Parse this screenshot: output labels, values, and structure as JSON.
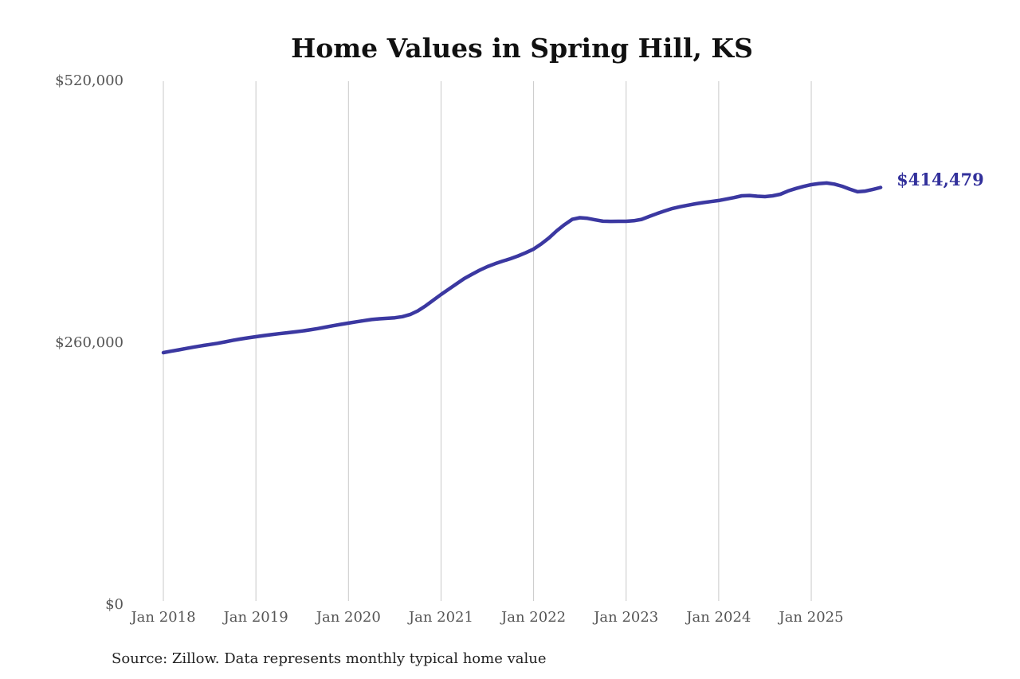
{
  "chart": {
    "title": "Home Values in Spring Hill, KS",
    "end_label": "$414,479",
    "source_note": "Source: Zillow. Data represents monthly typical home value",
    "line_color": "#3b38a1",
    "end_label_color": "#32309b",
    "grid_color": "#c9c9c9",
    "tick_color": "#555555"
  },
  "chart_data": {
    "type": "line",
    "title": "Home Values in Spring Hill, KS",
    "xlabel": "",
    "ylabel": "",
    "legend": "none",
    "grid": "vertical-yearly",
    "ylim": [
      0,
      520000
    ],
    "y_tick_values": [
      0,
      260000,
      520000
    ],
    "y_tick_labels": [
      "$0",
      "$260,000",
      "$520,000"
    ],
    "x_tick_labels": [
      "Jan 2018",
      "Jan 2019",
      "Jan 2020",
      "Jan 2021",
      "Jan 2022",
      "Jan 2023",
      "Jan 2024",
      "Jan 2025"
    ],
    "annotation": {
      "text": "$414,479",
      "value": 414479,
      "position": "end-of-line"
    },
    "source": "Source: Zillow. Data represents monthly typical home value",
    "x": [
      "2018-01",
      "2018-02",
      "2018-03",
      "2018-04",
      "2018-05",
      "2018-06",
      "2018-07",
      "2018-08",
      "2018-09",
      "2018-10",
      "2018-11",
      "2018-12",
      "2019-01",
      "2019-02",
      "2019-03",
      "2019-04",
      "2019-05",
      "2019-06",
      "2019-07",
      "2019-08",
      "2019-09",
      "2019-10",
      "2019-11",
      "2019-12",
      "2020-01",
      "2020-02",
      "2020-03",
      "2020-04",
      "2020-05",
      "2020-06",
      "2020-07",
      "2020-08",
      "2020-09",
      "2020-10",
      "2020-11",
      "2020-12",
      "2021-01",
      "2021-02",
      "2021-03",
      "2021-04",
      "2021-05",
      "2021-06",
      "2021-07",
      "2021-08",
      "2021-09",
      "2021-10",
      "2021-11",
      "2021-12",
      "2022-01",
      "2022-02",
      "2022-03",
      "2022-04",
      "2022-05",
      "2022-06",
      "2022-07",
      "2022-08",
      "2022-09",
      "2022-10",
      "2022-11",
      "2022-12",
      "2023-01",
      "2023-02",
      "2023-03",
      "2023-04",
      "2023-05",
      "2023-06",
      "2023-07",
      "2023-08",
      "2023-09",
      "2023-10",
      "2023-11",
      "2023-12",
      "2024-01",
      "2024-02",
      "2024-03",
      "2024-04",
      "2024-05",
      "2024-06",
      "2024-07",
      "2024-08",
      "2024-09",
      "2024-10",
      "2024-11",
      "2024-12",
      "2025-01",
      "2025-02",
      "2025-03",
      "2025-04",
      "2025-05",
      "2025-06",
      "2025-07",
      "2025-08",
      "2025-09",
      "2025-10"
    ],
    "values": [
      250500,
      251900,
      253300,
      254700,
      256100,
      257400,
      258600,
      259800,
      261200,
      262700,
      264000,
      265200,
      266300,
      267400,
      268400,
      269300,
      270200,
      271100,
      272000,
      273100,
      274400,
      275800,
      277200,
      278600,
      279800,
      281100,
      282300,
      283400,
      284100,
      284600,
      285100,
      286200,
      288400,
      292000,
      297000,
      302600,
      308200,
      313500,
      318800,
      324000,
      328300,
      332300,
      335900,
      338800,
      341400,
      343800,
      346500,
      349800,
      353300,
      358500,
      364500,
      371400,
      377500,
      382800,
      384500,
      383800,
      382300,
      381000,
      380800,
      380900,
      380900,
      381500,
      382800,
      385700,
      388600,
      391200,
      393600,
      395400,
      396900,
      398300,
      399500,
      400500,
      401500,
      403000,
      404500,
      406200,
      406500,
      405800,
      405400,
      406200,
      407800,
      411000,
      413500,
      415500,
      417300,
      418400,
      418900,
      417800,
      415700,
      412800,
      410200,
      410900,
      412600,
      414479
    ]
  }
}
